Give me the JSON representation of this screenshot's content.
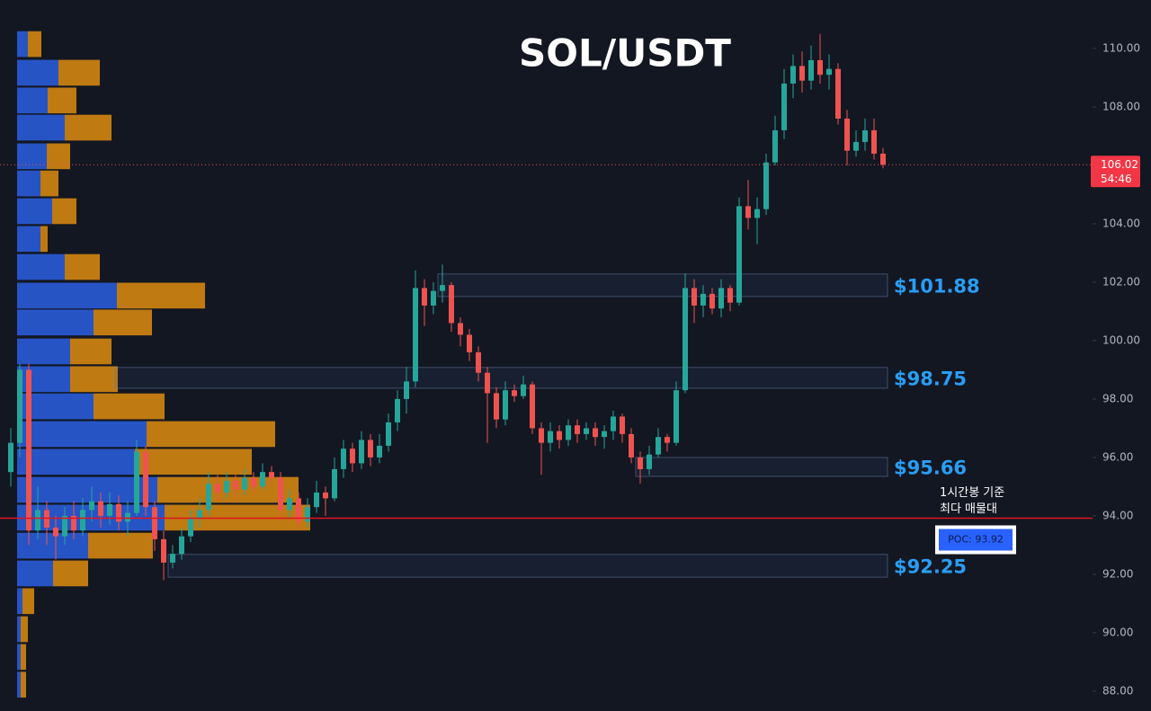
{
  "chart_data": {
    "type": "candlestick",
    "title": "SOL/USDT",
    "ylim": [
      87.32,
      111.66
    ],
    "yticks": [
      {
        "value": 88,
        "label": "88.00"
      },
      {
        "value": 90,
        "label": "90.00"
      },
      {
        "value": 92,
        "label": "92.00"
      },
      {
        "value": 94,
        "label": "94.00"
      },
      {
        "value": 96,
        "label": "96.00"
      },
      {
        "value": 98,
        "label": "98.00"
      },
      {
        "value": 100,
        "label": "100.00"
      },
      {
        "value": 102,
        "label": "102.00"
      },
      {
        "value": 104,
        "label": "104.00"
      },
      {
        "value": 106,
        "label": "106.00"
      },
      {
        "value": 108,
        "label": "108.00"
      },
      {
        "value": 110,
        "label": "110.00"
      }
    ],
    "up_color": "#26a69a",
    "down_color": "#ef5350",
    "open": [
      95.5,
      96.5,
      99,
      93.5,
      94.2,
      93.6,
      93.3,
      94,
      93.5,
      94.2,
      94.5,
      94,
      94.4,
      93.8,
      94.1,
      96.2,
      94.3,
      93.2,
      92.4,
      92.7,
      93.3,
      93.9,
      94.2,
      95.1,
      94.8,
      95.2,
      94.9,
      95.3,
      95,
      95.5,
      95.3,
      94.2,
      94.6,
      93.8,
      94.3,
      94.8,
      94.6,
      95.6,
      96.3,
      95.8,
      96.6,
      96,
      96.4,
      97.2,
      98,
      98.6,
      101.8,
      101.2,
      101.7,
      101.9,
      100.6,
      100.2,
      99.6,
      98.9,
      98.2,
      97.3,
      98.3,
      98.1,
      98.5,
      97,
      96.5,
      96.9,
      96.6,
      97.1,
      96.8,
      97,
      96.7,
      96.9,
      97.4,
      96.8,
      96,
      95.6,
      96.1,
      96.7,
      96.5,
      98.3,
      101.8,
      101.2,
      101.6,
      101.1,
      101.8,
      101.3,
      104.6,
      104.2,
      104.5,
      106.1,
      107.2,
      108.8,
      109.4,
      108.9,
      109.6,
      109.1,
      109.3,
      107.6,
      106.5,
      106.8,
      107.2,
      106.4
    ],
    "high": [
      97,
      99.2,
      99.2,
      95,
      94.5,
      94,
      94.3,
      94.5,
      94.6,
      95,
      94.8,
      94.8,
      94.7,
      94.5,
      96.6,
      96.4,
      94.5,
      93.5,
      93,
      93.6,
      94.2,
      94.6,
      95.5,
      95.4,
      95.5,
      95.4,
      95.6,
      95.5,
      95.8,
      95.7,
      95.5,
      94.9,
      94.8,
      94.6,
      95.2,
      95,
      96,
      96.6,
      96.5,
      96.9,
      96.8,
      96.8,
      97.5,
      98.3,
      99.1,
      102.4,
      102.1,
      102,
      102.6,
      102,
      100.8,
      100.4,
      99.8,
      99.1,
      98.4,
      98.6,
      98.5,
      98.8,
      98.6,
      97.2,
      97.2,
      97.1,
      97.3,
      97.3,
      97.2,
      97.2,
      97.1,
      97.6,
      97.5,
      97,
      96.2,
      96.4,
      97,
      96.8,
      98.6,
      102.3,
      102.1,
      101.9,
      101.8,
      102.1,
      101.9,
      104.9,
      105.5,
      104.9,
      106.4,
      107.7,
      109.3,
      109.8,
      109.9,
      110.1,
      110.5,
      109.8,
      109.5,
      107.9,
      107.2,
      107.6,
      107.6,
      106.6
    ],
    "low": [
      95,
      96,
      93,
      93.2,
      93,
      92.5,
      93,
      93.2,
      93.3,
      93.8,
      93.6,
      93.7,
      93.5,
      93.3,
      94,
      94,
      92.8,
      91.8,
      92.2,
      92.5,
      93.1,
      93.6,
      94,
      94.5,
      94.6,
      94.6,
      94.7,
      94.8,
      94.9,
      95,
      93.8,
      93.9,
      93.5,
      93.6,
      94.1,
      94,
      94.5,
      95.3,
      95.5,
      95.6,
      95.7,
      95.8,
      96.2,
      96.9,
      97.5,
      98.4,
      100.5,
      100.9,
      101.3,
      100.3,
      99.8,
      99.3,
      98.6,
      96.5,
      97,
      97.1,
      97.9,
      98,
      96.8,
      95.4,
      96.2,
      96.3,
      96.4,
      96.5,
      96.6,
      96.4,
      96.3,
      96.6,
      96.5,
      95.8,
      95.1,
      95.4,
      96,
      96.2,
      96.4,
      98.2,
      100.6,
      100.8,
      100.9,
      100.8,
      101,
      101.2,
      103.8,
      103.3,
      104.3,
      106,
      106.9,
      108.3,
      108.5,
      108.6,
      108.8,
      108.6,
      107.4,
      106,
      106.3,
      106.5,
      106.2,
      105.9
    ],
    "close": [
      96.5,
      99,
      93.5,
      94.2,
      93.6,
      93.3,
      94,
      93.5,
      94.2,
      94.5,
      94,
      94.4,
      93.8,
      94.1,
      96.2,
      94.3,
      93.2,
      92.4,
      92.7,
      93.3,
      93.9,
      94.2,
      95.1,
      94.8,
      95.2,
      94.9,
      95.3,
      95,
      95.5,
      95.3,
      94.2,
      94.6,
      93.8,
      94.3,
      94.8,
      94.6,
      95.6,
      96.3,
      95.8,
      96.6,
      96,
      96.4,
      97.2,
      98,
      98.6,
      101.8,
      101.2,
      101.7,
      101.9,
      100.6,
      100.2,
      99.6,
      98.9,
      98.2,
      97.3,
      98.3,
      98.1,
      98.5,
      97,
      96.5,
      96.9,
      96.6,
      97.1,
      96.8,
      97,
      96.7,
      96.9,
      97.4,
      96.8,
      96,
      95.6,
      96.1,
      96.7,
      96.5,
      98.3,
      101.8,
      101.2,
      101.6,
      101.1,
      101.8,
      101.3,
      104.6,
      104.2,
      104.5,
      106.1,
      107.2,
      108.8,
      109.4,
      108.9,
      109.6,
      109.1,
      109.3,
      107.6,
      106.5,
      106.8,
      107.2,
      106.4,
      106.02
    ],
    "profile": {
      "prices": [
        110.15,
        109.17,
        108.22,
        107.29,
        106.31,
        105.38,
        104.43,
        103.48,
        102.52,
        101.54,
        100.62,
        99.63,
        98.68,
        97.75,
        96.8,
        95.85,
        94.89,
        93.94,
        92.98,
        92.03,
        91.08,
        90.12,
        89.17,
        88.22
      ],
      "buy": [
        12,
        46,
        34,
        53,
        33,
        26,
        39,
        26,
        53,
        111,
        85,
        59,
        59,
        85,
        144,
        131,
        156,
        164,
        79,
        40,
        6,
        4,
        4,
        4
      ],
      "sell": [
        15,
        46,
        32,
        52,
        26,
        20,
        27,
        8,
        39,
        98,
        65,
        46,
        53,
        79,
        143,
        130,
        157,
        162,
        72,
        39,
        13,
        8,
        6,
        6
      ],
      "buy_color": "#2a5bd7",
      "sell_color": "#d3850f"
    },
    "zones": [
      {
        "label": "$101.88",
        "low": 101.51,
        "high": 102.28,
        "start": 48
      },
      {
        "label": "$98.75",
        "low": 98.37,
        "high": 99.08,
        "start": 12
      },
      {
        "label": "$95.66",
        "low": 95.35,
        "high": 96.0,
        "start": 70
      },
      {
        "label": "$92.25",
        "low": 91.9,
        "high": 92.68,
        "start": 18
      }
    ],
    "last_price": 106.02,
    "countdown": "54:46",
    "poc": {
      "value": 93.92,
      "label": "POC: 93.92"
    },
    "annotation": [
      "1시간봉 기준",
      "최다 매물대"
    ]
  }
}
